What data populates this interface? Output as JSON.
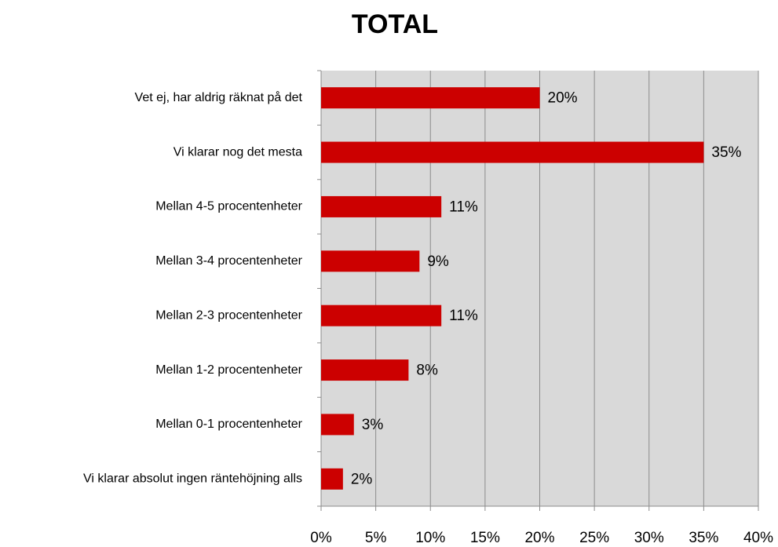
{
  "chart_data": {
    "type": "bar",
    "orientation": "horizontal",
    "title": "TOTAL",
    "categories": [
      "Vet ej, har aldrig räknat på det",
      "Vi klarar nog det mesta",
      "Mellan 4-5 procentenheter",
      "Mellan 3-4 procentenheter",
      "Mellan 2-3 procentenheter",
      "Mellan 1-2 procentenheter",
      "Mellan 0-1 procentenheter",
      "Vi klarar absolut ingen räntehöjning alls"
    ],
    "values": [
      20,
      35,
      11,
      9,
      11,
      8,
      3,
      2
    ],
    "value_labels": [
      "20%",
      "35%",
      "11%",
      "9%",
      "11%",
      "8%",
      "3%",
      "2%"
    ],
    "color": "#cc0000",
    "xlim": [
      0,
      40
    ],
    "xticks": [
      {
        "value": 0,
        "label": "0%"
      },
      {
        "value": 5,
        "label": "5%"
      },
      {
        "value": 10,
        "label": "10%"
      },
      {
        "value": 15,
        "label": "15%"
      },
      {
        "value": 20,
        "label": "20%"
      },
      {
        "value": 25,
        "label": "25%"
      },
      {
        "value": 30,
        "label": "30%"
      },
      {
        "value": 35,
        "label": "35%"
      },
      {
        "value": 40,
        "label": "40%"
      }
    ],
    "grid": true
  }
}
